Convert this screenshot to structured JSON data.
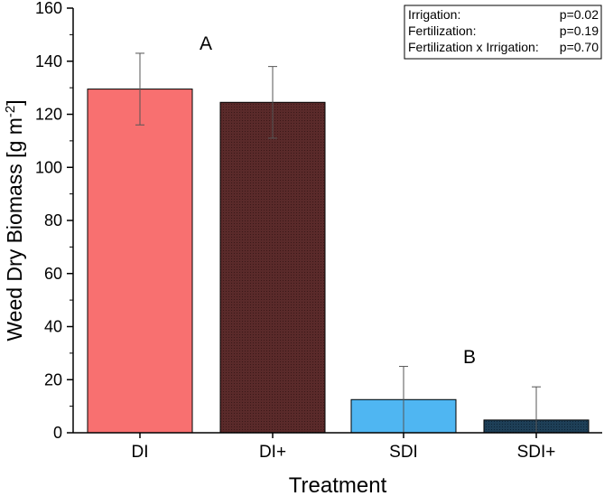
{
  "chart_data": {
    "type": "bar",
    "title": "",
    "xlabel": "Treatment",
    "ylabel_main": "Weed Dry Biomass [g m",
    "ylabel_sup": "-2",
    "ylabel_close": "]",
    "ylim": [
      0,
      160
    ],
    "yticks": [
      "0",
      "20",
      "40",
      "60",
      "80",
      "100",
      "120",
      "140",
      "160"
    ],
    "categories": [
      "DI",
      "DI+",
      "SDI",
      "SDI+"
    ],
    "values": [
      129.5,
      124.5,
      12.5,
      4.8
    ],
    "errors": [
      13.5,
      13.5,
      12.5,
      12.5
    ],
    "colors": [
      "#f87070",
      "#5a2a2a",
      "#4fb6f2",
      "#1e3f57"
    ],
    "group_letters": [
      {
        "text": "A",
        "value": 147
      },
      {
        "text": "B",
        "value": 29
      }
    ],
    "stats_box": {
      "rows": [
        {
          "label": "Irrigation:",
          "value": "p=0.02"
        },
        {
          "label": "Fertilization:",
          "value": "p=0.19"
        },
        {
          "label": "Fertilization x Irrigation:",
          "value": "p=0.70"
        }
      ]
    }
  }
}
